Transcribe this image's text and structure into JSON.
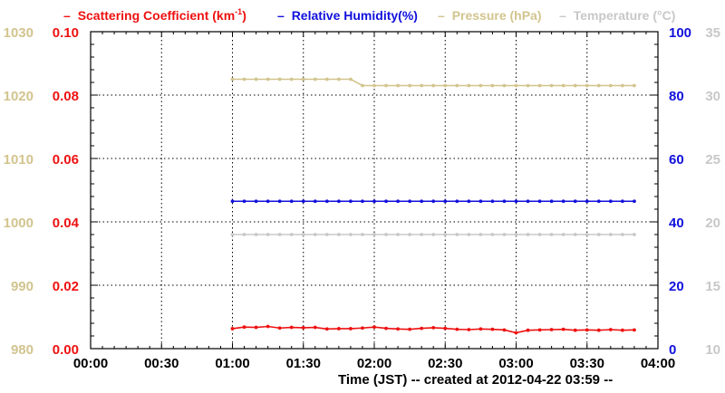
{
  "colors": {
    "scattering": "#ee1111",
    "humidity": "#1111dd",
    "pressure": "#d2c48e",
    "temperature": "#c8c8c8",
    "grid": "#000000",
    "axis": "#000000"
  },
  "legend": {
    "scattering": {
      "dash": "–",
      "label": "Scattering Coefficient (km",
      "sup": "-1",
      "close": ")"
    },
    "humidity": {
      "dash": "–",
      "label": "Relative Humidity(%)"
    },
    "pressure": {
      "dash": "–",
      "label": "Pressure (hPa)"
    },
    "temperature": {
      "dash": "–",
      "label": "Temperature (°C)"
    }
  },
  "chart_data": {
    "type": "line",
    "xlabel": "Time (JST)  -- created at 2012-04-22 03:59 --",
    "x_tick_labels": [
      "00:00",
      "00:30",
      "01:00",
      "01:30",
      "02:00",
      "02:30",
      "03:00",
      "03:30",
      "04:00"
    ],
    "xlim_minutes": [
      0,
      240
    ],
    "grid": true,
    "axes": {
      "scattering": {
        "side": "left-inner",
        "ylim": [
          0.0,
          0.1
        ],
        "ticks": [
          "0.00",
          "0.02",
          "0.04",
          "0.06",
          "0.08",
          "0.10"
        ]
      },
      "pressure": {
        "side": "left-outer",
        "ylim": [
          980,
          1030
        ],
        "ticks": [
          "980",
          "990",
          "1000",
          "1010",
          "1020",
          "1030"
        ]
      },
      "humidity": {
        "side": "right-inner",
        "ylim": [
          0,
          100
        ],
        "ticks": [
          "0",
          "20",
          "40",
          "60",
          "80",
          "100"
        ]
      },
      "temperature": {
        "side": "right-outer",
        "ylim": [
          10,
          35
        ],
        "ticks": [
          "10",
          "15",
          "20",
          "25",
          "30",
          "35"
        ]
      }
    },
    "x_minutes": [
      60,
      65,
      70,
      75,
      80,
      85,
      90,
      95,
      100,
      105,
      110,
      115,
      120,
      125,
      130,
      135,
      140,
      145,
      150,
      155,
      160,
      165,
      170,
      175,
      180,
      185,
      190,
      195,
      200,
      205,
      210,
      215,
      220,
      225,
      230
    ],
    "series": [
      {
        "key": "scattering",
        "name": "Scattering Coefficient (km-1)",
        "axis": "scattering",
        "values": [
          0.0063,
          0.0068,
          0.0067,
          0.007,
          0.0065,
          0.0067,
          0.0066,
          0.0067,
          0.0062,
          0.0063,
          0.0063,
          0.0065,
          0.0068,
          0.0064,
          0.0062,
          0.0061,
          0.0064,
          0.0066,
          0.0064,
          0.0061,
          0.006,
          0.0062,
          0.0061,
          0.0059,
          0.005,
          0.0058,
          0.0059,
          0.006,
          0.0061,
          0.0058,
          0.0059,
          0.0058,
          0.006,
          0.0058,
          0.0059
        ]
      },
      {
        "key": "humidity",
        "name": "Relative Humidity(%)",
        "axis": "humidity",
        "values": [
          46.5,
          46.5,
          46.5,
          46.5,
          46.5,
          46.5,
          46.5,
          46.5,
          46.5,
          46.5,
          46.5,
          46.5,
          46.5,
          46.5,
          46.5,
          46.5,
          46.5,
          46.5,
          46.5,
          46.5,
          46.5,
          46.5,
          46.5,
          46.5,
          46.5,
          46.5,
          46.5,
          46.5,
          46.5,
          46.5,
          46.5,
          46.5,
          46.5,
          46.5,
          46.5
        ]
      },
      {
        "key": "pressure",
        "name": "Pressure (hPa)",
        "axis": "pressure",
        "values": [
          1022.5,
          1022.5,
          1022.5,
          1022.5,
          1022.5,
          1022.5,
          1022.5,
          1022.5,
          1022.5,
          1022.5,
          1022.5,
          1021.5,
          1021.5,
          1021.5,
          1021.5,
          1021.5,
          1021.5,
          1021.5,
          1021.5,
          1021.5,
          1021.5,
          1021.5,
          1021.5,
          1021.5,
          1021.5,
          1021.5,
          1021.5,
          1021.5,
          1021.5,
          1021.5,
          1021.5,
          1021.5,
          1021.5,
          1021.5,
          1021.5
        ]
      },
      {
        "key": "temperature",
        "name": "Temperature (°C)",
        "axis": "temperature",
        "values": [
          19.0,
          19.0,
          19.0,
          19.0,
          19.0,
          19.0,
          19.0,
          19.0,
          19.0,
          19.0,
          19.0,
          19.0,
          19.0,
          19.0,
          19.0,
          19.0,
          19.0,
          19.0,
          19.0,
          19.0,
          19.0,
          19.0,
          19.0,
          19.0,
          19.0,
          19.0,
          19.0,
          19.0,
          19.0,
          19.0,
          19.0,
          19.0,
          19.0,
          19.0,
          19.0
        ]
      }
    ]
  }
}
